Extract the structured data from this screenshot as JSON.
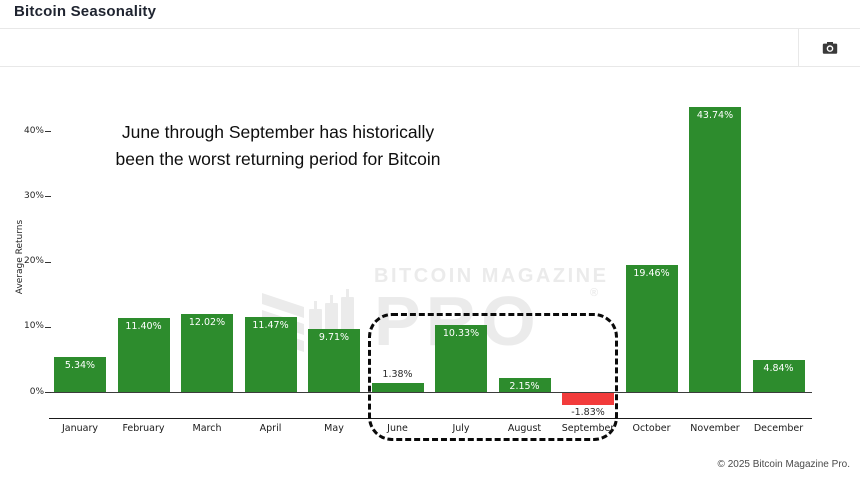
{
  "window": {
    "title": "Bitcoin Seasonality"
  },
  "toolbar": {
    "screenshot_button_icon": "camera-icon"
  },
  "annotation": {
    "line1": "June through September has historically",
    "line2": "been the worst returning period for Bitcoin"
  },
  "watermark": {
    "brand_line": "BITCOIN MAGAZINE",
    "brand_word": "PRO",
    "registered_mark": "®"
  },
  "footer": {
    "copyright": "© 2025 Bitcoin Magazine Pro."
  },
  "colors": {
    "positive_bar": "#2d8c2d",
    "negative_bar": "#f23b3b",
    "watermark": "#ebebeb",
    "title_text": "#1f2430"
  },
  "chart_data": {
    "type": "bar",
    "title": "Bitcoin Seasonality",
    "ylabel": "Average Returns",
    "xlabel": "",
    "categories": [
      "January",
      "February",
      "March",
      "April",
      "May",
      "June",
      "July",
      "August",
      "September",
      "October",
      "November",
      "December"
    ],
    "values": [
      5.34,
      11.4,
      12.02,
      11.47,
      9.71,
      1.38,
      10.33,
      2.15,
      -1.83,
      19.46,
      43.74,
      4.84
    ],
    "bar_labels": [
      "5.34%",
      "11.40%",
      "12.02%",
      "11.47%",
      "9.71%",
      "1.38%",
      "10.33%",
      "2.15%",
      "-1.83%",
      "19.46%",
      "43.74%",
      "4.84%"
    ],
    "label_positions": [
      "inside",
      "inside",
      "inside",
      "inside",
      "inside",
      "above",
      "inside",
      "inside",
      "below",
      "inside",
      "inside",
      "inside"
    ],
    "yticks": [
      "0%",
      "10%",
      "20%",
      "30%",
      "40%"
    ],
    "ytick_values": [
      0,
      10,
      20,
      30,
      40
    ],
    "ylim": [
      -4,
      46
    ],
    "grid": false,
    "legend": false,
    "annotation_text": "June through September has historically been the worst returning period for Bitcoin",
    "highlight_box": {
      "from": "June",
      "to": "September",
      "style": "dashed-rounded"
    },
    "negative_months": [
      "September"
    ]
  }
}
